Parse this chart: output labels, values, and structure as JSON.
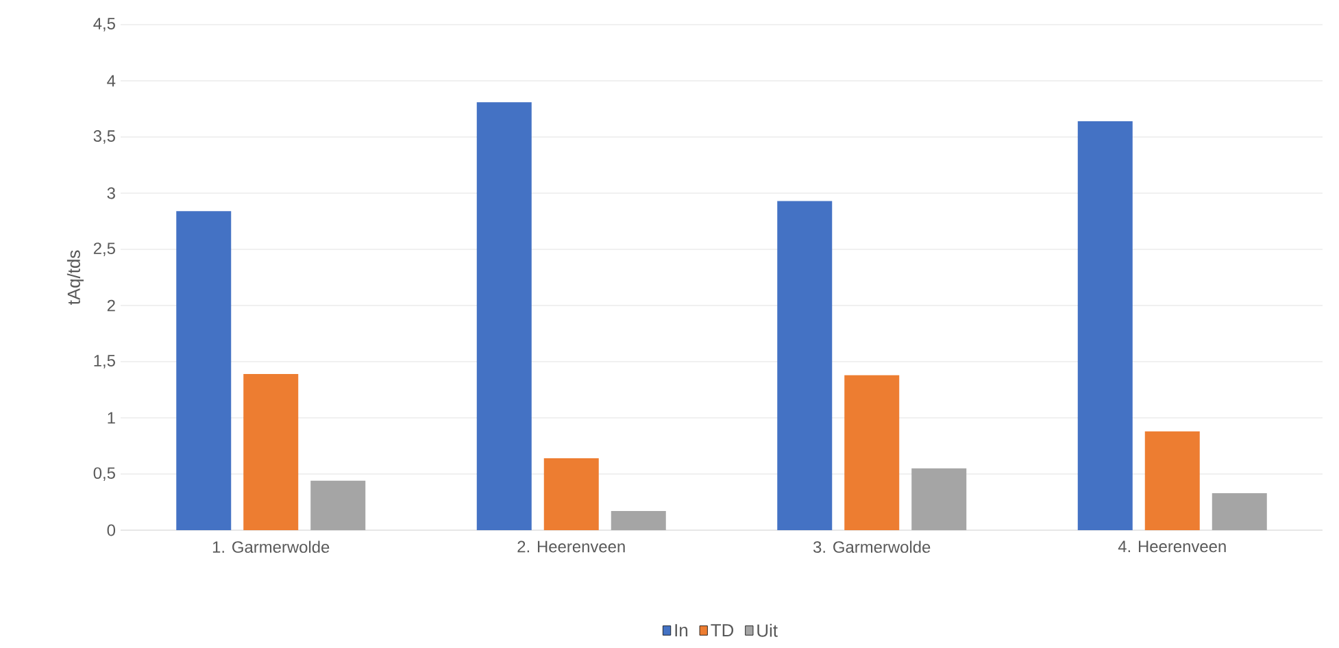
{
  "chart_data": {
    "type": "bar",
    "ylabel": "tAq/tds",
    "categories": [
      "1. Garmerwolde",
      "2. Heerenveen",
      "3. Garmerwolde",
      "4. Heerenveen"
    ],
    "series": [
      {
        "name": "In",
        "color": "#4472c4",
        "values": [
          2.84,
          3.81,
          2.93,
          3.64
        ]
      },
      {
        "name": "TD",
        "color": "#ed7d31",
        "values": [
          1.39,
          0.64,
          1.38,
          0.88
        ]
      },
      {
        "name": "Uit",
        "color": "#a5a5a5",
        "values": [
          0.44,
          0.17,
          0.55,
          0.33
        ]
      }
    ],
    "ylim": [
      0,
      4.5
    ],
    "yticks": [
      0,
      {
        "value": 0.5,
        "label": "0,5"
      },
      1,
      {
        "value": 1.5,
        "label": "1,5"
      },
      2,
      {
        "value": 2.5,
        "label": "2,5"
      },
      3,
      {
        "value": 3.5,
        "label": "3,5"
      },
      4,
      {
        "value": 4.5,
        "label": "4,5"
      }
    ],
    "grid": "y",
    "legend": "bottom"
  }
}
